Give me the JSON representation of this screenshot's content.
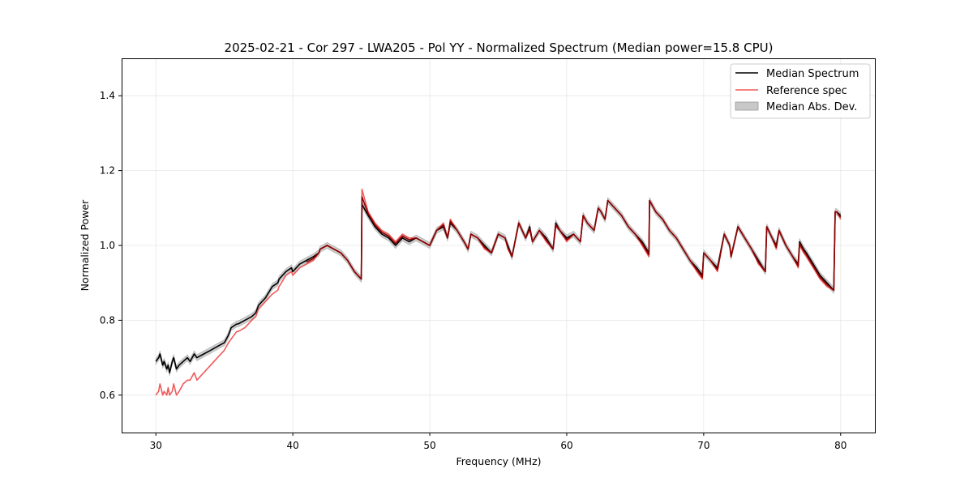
{
  "chart_data": {
    "type": "line",
    "title": "2025-02-21 - Cor 297 - LWA205 - Pol YY - Normalized Spectrum (Median power=15.8 CPU)",
    "xlabel": "Frequency (MHz)",
    "ylabel": "Normalized Power",
    "xlim": [
      27.5,
      82.5
    ],
    "ylim": [
      0.5,
      1.5
    ],
    "xticks": [
      30,
      40,
      50,
      60,
      70,
      80
    ],
    "yticks": [
      0.6,
      0.8,
      1.0,
      1.2,
      1.4
    ],
    "xtick_labels": [
      "30",
      "40",
      "50",
      "60",
      "70",
      "80"
    ],
    "ytick_labels": [
      "0.6",
      "0.8",
      "1.0",
      "1.2",
      "1.4"
    ],
    "grid": true,
    "legend_position": "top-right",
    "legend": {
      "median": "Median Spectrum",
      "reference": "Reference spec",
      "mad": "Median Abs. Dev."
    },
    "colors": {
      "median": "#000000",
      "reference": "#f05a5a",
      "mad": "#c8c8c8",
      "grid": "#e6e6e6"
    },
    "mad_halfwidth": 0.008,
    "series": [
      {
        "name": "Median Spectrum",
        "x": [
          30.0,
          30.2,
          30.3,
          30.5,
          30.6,
          30.8,
          30.9,
          31.0,
          31.2,
          31.3,
          31.5,
          31.7,
          32.0,
          32.3,
          32.5,
          32.8,
          33.0,
          33.5,
          34.0,
          34.5,
          35.0,
          35.3,
          35.5,
          35.9,
          36.0,
          36.5,
          37.0,
          37.3,
          37.5,
          38.0,
          38.5,
          38.9,
          39.0,
          39.5,
          39.9,
          40.0,
          40.5,
          41.0,
          41.5,
          41.9,
          42.0,
          42.5,
          43.0,
          43.5,
          44.0,
          44.5,
          45.0,
          45.05,
          45.5,
          46.0,
          46.5,
          47.0,
          47.5,
          48.0,
          48.5,
          49.0,
          49.5,
          50.0,
          50.5,
          51.0,
          51.3,
          51.5,
          52.0,
          52.5,
          52.8,
          53.0,
          53.5,
          54.0,
          54.5,
          55.0,
          55.5,
          55.7,
          56.0,
          56.5,
          57.0,
          57.3,
          57.5,
          58.0,
          58.5,
          59.0,
          59.2,
          59.5,
          60.0,
          60.5,
          61.0,
          61.2,
          61.5,
          62.0,
          62.3,
          62.5,
          62.8,
          63.0,
          63.5,
          64.0,
          64.5,
          65.0,
          65.5,
          66.0,
          66.05,
          66.5,
          67.0,
          67.5,
          68.0,
          68.5,
          69.0,
          69.5,
          69.9,
          70.0,
          70.5,
          71.0,
          71.5,
          71.9,
          72.0,
          72.5,
          73.0,
          73.5,
          74.0,
          74.5,
          74.6,
          75.0,
          75.3,
          75.5,
          76.0,
          76.5,
          76.9,
          77.0,
          77.3,
          77.5,
          78.0,
          78.5,
          79.0,
          79.5,
          79.6,
          79.7,
          80.0
        ],
        "y": [
          0.69,
          0.7,
          0.71,
          0.68,
          0.69,
          0.67,
          0.68,
          0.66,
          0.69,
          0.7,
          0.67,
          0.68,
          0.69,
          0.7,
          0.69,
          0.71,
          0.7,
          0.71,
          0.72,
          0.73,
          0.74,
          0.76,
          0.78,
          0.79,
          0.79,
          0.8,
          0.81,
          0.82,
          0.84,
          0.86,
          0.89,
          0.9,
          0.91,
          0.93,
          0.94,
          0.93,
          0.95,
          0.96,
          0.97,
          0.98,
          0.99,
          1.0,
          0.99,
          0.98,
          0.96,
          0.93,
          0.91,
          1.11,
          1.08,
          1.05,
          1.03,
          1.02,
          1.0,
          1.02,
          1.01,
          1.02,
          1.01,
          1.0,
          1.04,
          1.05,
          1.02,
          1.06,
          1.04,
          1.01,
          0.99,
          1.03,
          1.02,
          1.0,
          0.98,
          1.03,
          1.02,
          1.0,
          0.97,
          1.06,
          1.02,
          1.05,
          1.01,
          1.04,
          1.02,
          0.99,
          1.06,
          1.04,
          1.02,
          1.03,
          1.01,
          1.08,
          1.06,
          1.04,
          1.1,
          1.09,
          1.07,
          1.12,
          1.1,
          1.08,
          1.05,
          1.03,
          1.01,
          0.98,
          1.12,
          1.09,
          1.07,
          1.04,
          1.02,
          0.99,
          0.96,
          0.94,
          0.92,
          0.98,
          0.96,
          0.94,
          1.03,
          1.0,
          0.97,
          1.05,
          1.02,
          0.99,
          0.96,
          0.93,
          1.05,
          1.02,
          1.0,
          1.04,
          1.0,
          0.97,
          0.95,
          1.01,
          0.99,
          0.98,
          0.95,
          0.92,
          0.9,
          0.88,
          1.09,
          1.09,
          1.08
        ]
      },
      {
        "name": "Reference spec",
        "x": [
          30.0,
          30.2,
          30.3,
          30.5,
          30.6,
          30.8,
          30.9,
          31.0,
          31.2,
          31.3,
          31.5,
          31.7,
          32.0,
          32.3,
          32.5,
          32.8,
          33.0,
          33.5,
          34.0,
          34.5,
          35.0,
          35.3,
          35.5,
          35.9,
          36.0,
          36.5,
          37.0,
          37.3,
          37.5,
          38.0,
          38.5,
          38.9,
          39.0,
          39.5,
          39.9,
          40.0,
          40.5,
          41.0,
          41.5,
          41.9,
          42.0,
          42.5,
          43.0,
          43.5,
          44.0,
          44.5,
          45.0,
          45.05,
          45.5,
          46.0,
          46.5,
          47.0,
          47.5,
          48.0,
          48.5,
          49.0,
          49.5,
          50.0,
          50.5,
          51.0,
          51.3,
          51.5,
          52.0,
          52.5,
          52.8,
          53.0,
          53.5,
          54.0,
          54.5,
          55.0,
          55.5,
          55.7,
          56.0,
          56.5,
          57.0,
          57.3,
          57.5,
          58.0,
          58.5,
          59.0,
          59.2,
          59.5,
          60.0,
          60.5,
          61.0,
          61.2,
          61.5,
          62.0,
          62.3,
          62.5,
          62.8,
          63.0,
          63.5,
          64.0,
          64.5,
          65.0,
          65.5,
          66.0,
          66.05,
          66.5,
          67.0,
          67.5,
          68.0,
          68.5,
          69.0,
          69.5,
          69.9,
          70.0,
          70.5,
          71.0,
          71.5,
          71.9,
          72.0,
          72.5,
          73.0,
          73.5,
          74.0,
          74.5,
          74.6,
          75.0,
          75.3,
          75.5,
          76.0,
          76.5,
          76.9,
          77.0,
          77.3,
          77.5,
          78.0,
          78.5,
          79.0,
          79.5,
          79.6,
          79.7,
          80.0
        ],
        "y": [
          0.6,
          0.61,
          0.63,
          0.6,
          0.61,
          0.6,
          0.62,
          0.6,
          0.61,
          0.63,
          0.6,
          0.61,
          0.63,
          0.64,
          0.64,
          0.66,
          0.64,
          0.66,
          0.68,
          0.7,
          0.72,
          0.74,
          0.75,
          0.77,
          0.77,
          0.78,
          0.8,
          0.81,
          0.83,
          0.85,
          0.87,
          0.88,
          0.89,
          0.92,
          0.93,
          0.92,
          0.94,
          0.95,
          0.96,
          0.98,
          0.99,
          1.0,
          0.99,
          0.98,
          0.96,
          0.93,
          0.91,
          1.15,
          1.09,
          1.06,
          1.04,
          1.03,
          1.01,
          1.03,
          1.02,
          1.02,
          1.01,
          1.0,
          1.04,
          1.06,
          1.02,
          1.07,
          1.04,
          1.01,
          0.99,
          1.03,
          1.02,
          0.99,
          0.98,
          1.03,
          1.02,
          0.99,
          0.97,
          1.06,
          1.02,
          1.04,
          1.01,
          1.04,
          1.01,
          0.99,
          1.05,
          1.04,
          1.01,
          1.03,
          1.01,
          1.08,
          1.06,
          1.04,
          1.1,
          1.09,
          1.07,
          1.12,
          1.1,
          1.08,
          1.05,
          1.03,
          1.0,
          0.97,
          1.12,
          1.09,
          1.07,
          1.04,
          1.02,
          0.99,
          0.96,
          0.93,
          0.91,
          0.98,
          0.96,
          0.93,
          1.03,
          1.0,
          0.97,
          1.05,
          1.02,
          0.99,
          0.95,
          0.93,
          1.05,
          1.02,
          0.99,
          1.04,
          1.0,
          0.97,
          0.94,
          1.0,
          0.98,
          0.97,
          0.94,
          0.91,
          0.89,
          0.88,
          1.09,
          1.09,
          1.07
        ]
      }
    ]
  }
}
